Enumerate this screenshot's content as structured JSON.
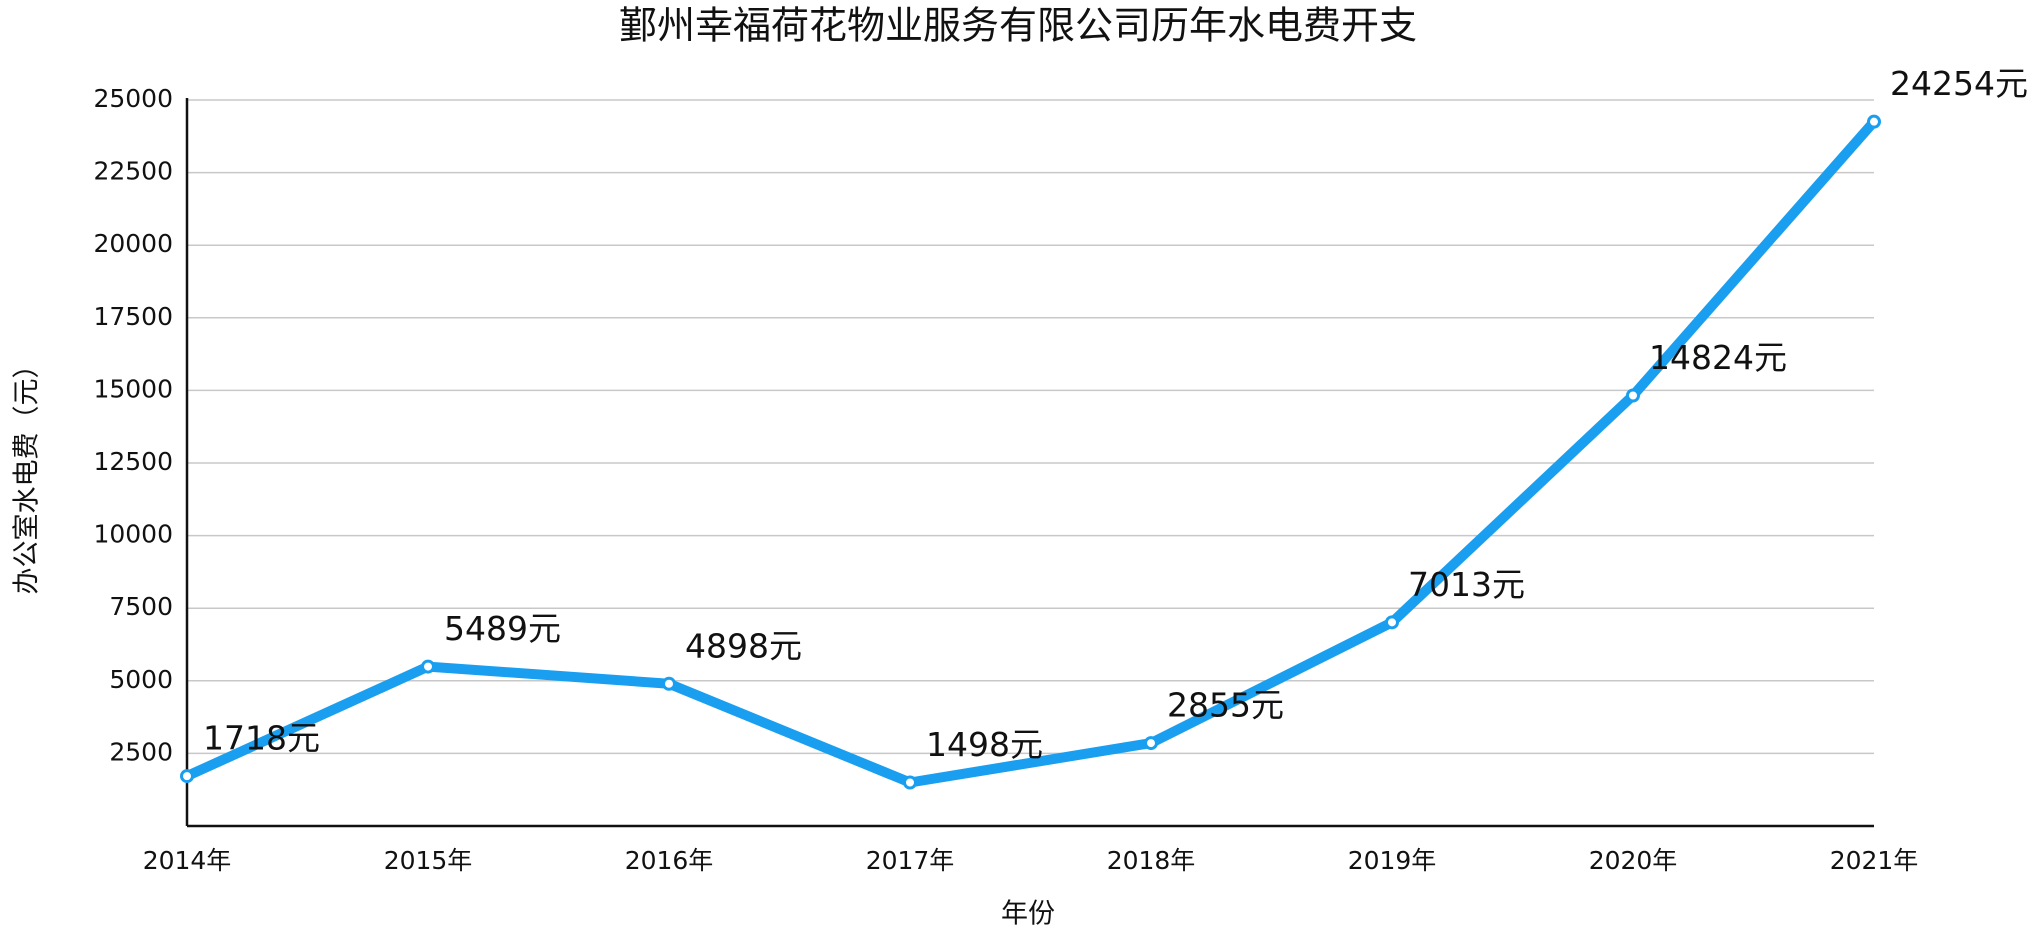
{
  "chart_data": {
    "type": "line",
    "title": "鄞州幸福荷花物业服务有限公司历年水电费开支",
    "x_label": "年份",
    "y_label": "办公室水电费（元）",
    "categories": [
      "2014年",
      "2015年",
      "2016年",
      "2017年",
      "2018年",
      "2019年",
      "2020年",
      "2021年"
    ],
    "series": [
      {
        "name": "办公室水电费",
        "color": "#1a9ff0",
        "values": [
          1718,
          5489,
          4898,
          1498,
          2855,
          7013,
          14824,
          24254
        ],
        "value_labels": [
          "1718元",
          "5489元",
          "4898元",
          "1498元",
          "2855元",
          "7013元",
          "14824元",
          "24254元"
        ]
      }
    ],
    "ylim": [
      0,
      25000
    ],
    "yticks": [
      2500,
      5000,
      7500,
      10000,
      12500,
      15000,
      17500,
      20000,
      22500,
      25000
    ],
    "grid": true
  }
}
